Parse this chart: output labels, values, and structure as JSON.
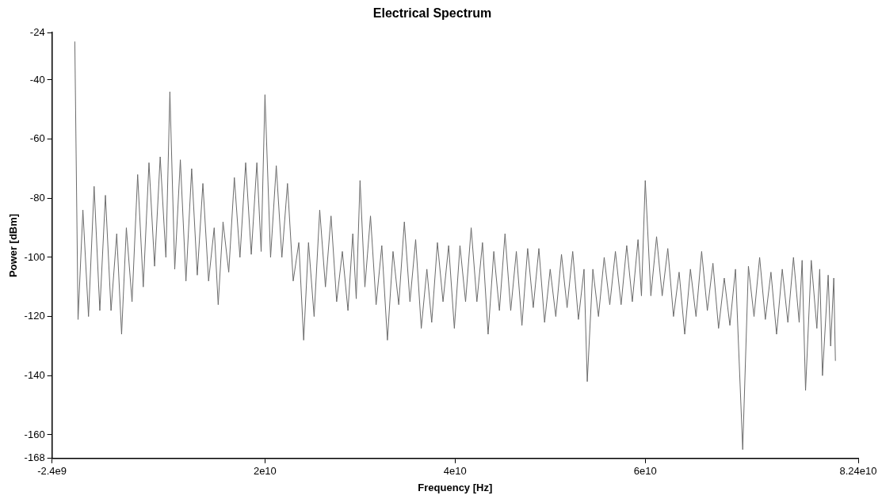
{
  "chart_data": {
    "type": "line",
    "title": "Electrical Spectrum",
    "xlabel": "Frequency [Hz]",
    "ylabel": "Power [dBm]",
    "xlim": [
      -2400000000.0,
      82400000000.0
    ],
    "xticks": [
      {
        "value": -2400000000.0,
        "label": "-2.4e9"
      },
      {
        "value": 20000000000.0,
        "label": "2e10"
      },
      {
        "value": 40000000000.0,
        "label": "4e10"
      },
      {
        "value": 60000000000.0,
        "label": "6e10"
      },
      {
        "value": 82400000000.0,
        "label": "8.24e10"
      }
    ],
    "ylim": [
      -168,
      -24
    ],
    "yticks": [
      -168,
      -160,
      -140,
      -120,
      -100,
      -80,
      -60,
      -40,
      -24
    ],
    "grid": false,
    "legend": false,
    "marker": "none",
    "line_style": "solid",
    "x": [
      0,
      340000000.0,
      850000000.0,
      1440000000.0,
      2030000000.0,
      2630000000.0,
      3220000000.0,
      3810000000.0,
      4410000000.0,
      4920000000.0,
      5420000000.0,
      6020000000.0,
      6610000000.0,
      7200000000.0,
      7800000000.0,
      8390000000.0,
      8980000000.0,
      9580000000.0,
      10000000000.0,
      10510000000.0,
      11100000000.0,
      11690000000.0,
      12290000000.0,
      12880000000.0,
      13470000000.0,
      14070000000.0,
      14660000000.0,
      15080000000.0,
      15590000000.0,
      16190000000.0,
      16780000000.0,
      17370000000.0,
      17970000000.0,
      18560000000.0,
      19150000000.0,
      19600000000.0,
      20000000000.0,
      20590000000.0,
      21190000000.0,
      21780000000.0,
      22370000000.0,
      22970000000.0,
      23560000000.0,
      24070000000.0,
      24580000000.0,
      25170000000.0,
      25760000000.0,
      26360000000.0,
      26950000000.0,
      27540000000.0,
      28140000000.0,
      28730000000.0,
      29240000000.0,
      29600000000.0,
      30000000000.0,
      30510000000.0,
      31100000000.0,
      31690000000.0,
      32290000000.0,
      32880000000.0,
      33470000000.0,
      34070000000.0,
      34660000000.0,
      35250000000.0,
      35850000000.0,
      36440000000.0,
      37030000000.0,
      37540000000.0,
      38140000000.0,
      38730000000.0,
      39320000000.0,
      39920000000.0,
      40510000000.0,
      41100000000.0,
      41690000000.0,
      42290000000.0,
      42880000000.0,
      43470000000.0,
      44070000000.0,
      44660000000.0,
      45250000000.0,
      45850000000.0,
      46440000000.0,
      47030000000.0,
      47630000000.0,
      48220000000.0,
      48810000000.0,
      49410000000.0,
      50000000000.0,
      50590000000.0,
      51190000000.0,
      51780000000.0,
      52370000000.0,
      52970000000.0,
      53560000000.0,
      53900000000.0,
      54490000000.0,
      55080000000.0,
      55680000000.0,
      56270000000.0,
      56860000000.0,
      57460000000.0,
      58050000000.0,
      58640000000.0,
      59240000000.0,
      59600000000.0,
      60000000000.0,
      60590000000.0,
      61190000000.0,
      61780000000.0,
      62370000000.0,
      62970000000.0,
      63560000000.0,
      64150000000.0,
      64750000000.0,
      65340000000.0,
      65930000000.0,
      66530000000.0,
      67120000000.0,
      67710000000.0,
      68310000000.0,
      68900000000.0,
      69490000000.0,
      70250000000.0,
      70850000000.0,
      71440000000.0,
      72030000000.0,
      72630000000.0,
      73220000000.0,
      73810000000.0,
      74410000000.0,
      75000000000.0,
      75590000000.0,
      76190000000.0,
      76500000000.0,
      76860000000.0,
      77460000000.0,
      78050000000.0,
      78350000000.0,
      78640000000.0,
      79240000000.0,
      79500000000.0,
      79830000000.0,
      80000000000.0
    ],
    "series": [
      {
        "color": "#6b6b6b",
        "values": [
          -27,
          -121,
          -84,
          -120,
          -76,
          -118,
          -79,
          -118,
          -92,
          -126,
          -90,
          -115,
          -72,
          -110,
          -68,
          -103,
          -66,
          -100,
          -44,
          -104,
          -67,
          -108,
          -70,
          -106,
          -75,
          -108,
          -90,
          -116,
          -88,
          -105,
          -73,
          -100,
          -68,
          -99,
          -68,
          -98,
          -45,
          -100,
          -69,
          -100,
          -75,
          -108,
          -95,
          -128,
          -95,
          -120,
          -84,
          -110,
          -86,
          -115,
          -98,
          -118,
          -92,
          -114,
          -74,
          -110,
          -86,
          -116,
          -96,
          -128,
          -98,
          -116,
          -88,
          -115,
          -94,
          -124,
          -104,
          -122,
          -95,
          -115,
          -96,
          -124,
          -96,
          -115,
          -90,
          -115,
          -95,
          -126,
          -98,
          -118,
          -92,
          -118,
          -98,
          -123,
          -97,
          -117,
          -97,
          -122,
          -104,
          -120,
          -99,
          -117,
          -98,
          -121,
          -104,
          -142,
          -104,
          -120,
          -100,
          -116,
          -98,
          -116,
          -96,
          -115,
          -94,
          -113,
          -74,
          -113,
          -93,
          -113,
          -97,
          -120,
          -105,
          -126,
          -104,
          -120,
          -98,
          -118,
          -102,
          -124,
          -107,
          -123,
          -104,
          -165,
          -103,
          -120,
          -100,
          -121,
          -105,
          -126,
          -104,
          -122,
          -100,
          -122,
          -101,
          -145,
          -101,
          -124,
          -104,
          -140,
          -106,
          -130,
          -107,
          -135
        ]
      }
    ]
  }
}
